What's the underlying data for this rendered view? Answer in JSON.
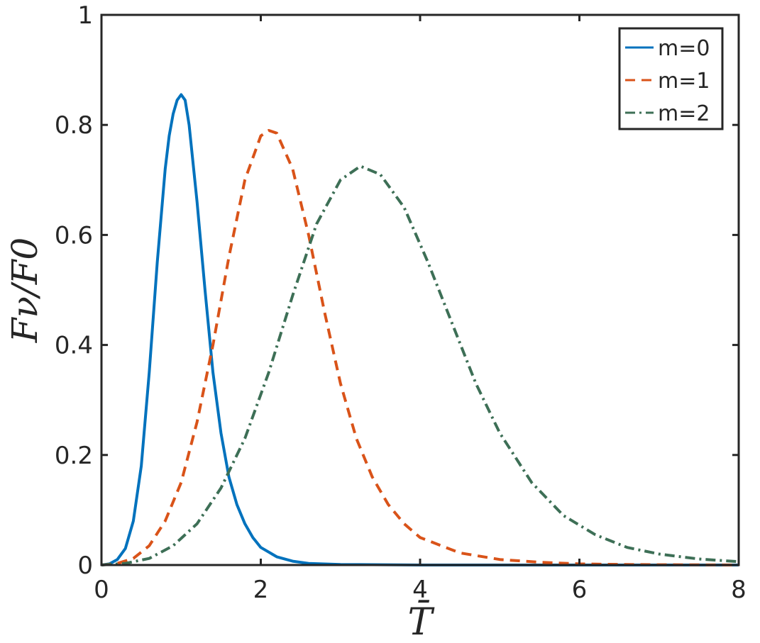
{
  "chart_data": {
    "type": "line",
    "xlabel": "T̄",
    "ylabel": "Fν/F0",
    "xlim": [
      0,
      8
    ],
    "ylim": [
      0,
      1
    ],
    "xticks": [
      "0",
      "2",
      "4",
      "6",
      "8"
    ],
    "yticks": [
      "0",
      "0.2",
      "0.4",
      "0.6",
      "0.8",
      "1"
    ],
    "grid": false,
    "legend_position": "top-right",
    "series": [
      {
        "name": "m=0",
        "color": "#0072BD",
        "style": "solid",
        "x": [
          0,
          0.1,
          0.2,
          0.3,
          0.4,
          0.5,
          0.6,
          0.7,
          0.8,
          0.85,
          0.9,
          0.95,
          1.0,
          1.05,
          1.1,
          1.2,
          1.3,
          1.4,
          1.5,
          1.6,
          1.7,
          1.8,
          1.9,
          2.0,
          2.2,
          2.4,
          2.6,
          3.0,
          4.0,
          6.0,
          8.0
        ],
        "y": [
          0,
          0.002,
          0.01,
          0.03,
          0.08,
          0.18,
          0.35,
          0.55,
          0.72,
          0.78,
          0.82,
          0.845,
          0.855,
          0.845,
          0.8,
          0.66,
          0.5,
          0.35,
          0.24,
          0.16,
          0.11,
          0.075,
          0.05,
          0.032,
          0.015,
          0.007,
          0.003,
          0.001,
          0,
          0,
          0
        ]
      },
      {
        "name": "m=1",
        "color": "#D95319",
        "style": "dashed",
        "x": [
          0,
          0.2,
          0.4,
          0.6,
          0.8,
          1.0,
          1.2,
          1.4,
          1.6,
          1.8,
          2.0,
          2.1,
          2.2,
          2.4,
          2.6,
          2.8,
          3.0,
          3.2,
          3.4,
          3.6,
          3.8,
          4.0,
          4.5,
          5.0,
          5.5,
          6.0,
          6.5,
          7.0,
          8.0
        ],
        "y": [
          0,
          0.003,
          0.012,
          0.035,
          0.08,
          0.15,
          0.26,
          0.4,
          0.56,
          0.7,
          0.78,
          0.79,
          0.785,
          0.72,
          0.6,
          0.46,
          0.33,
          0.23,
          0.16,
          0.11,
          0.075,
          0.05,
          0.022,
          0.01,
          0.005,
          0.002,
          0.001,
          0.0005,
          0
        ]
      },
      {
        "name": "m=2",
        "color": "#3D6F56",
        "style": "dashdot",
        "x": [
          0,
          0.3,
          0.6,
          0.9,
          1.2,
          1.5,
          1.8,
          2.1,
          2.4,
          2.7,
          3.0,
          3.25,
          3.5,
          3.8,
          4.1,
          4.4,
          4.7,
          5.0,
          5.4,
          5.8,
          6.2,
          6.6,
          7.0,
          7.5,
          8.0
        ],
        "y": [
          0,
          0.003,
          0.012,
          0.035,
          0.075,
          0.14,
          0.23,
          0.35,
          0.49,
          0.62,
          0.7,
          0.725,
          0.71,
          0.65,
          0.55,
          0.44,
          0.33,
          0.24,
          0.15,
          0.09,
          0.055,
          0.032,
          0.02,
          0.011,
          0.006
        ]
      }
    ]
  }
}
